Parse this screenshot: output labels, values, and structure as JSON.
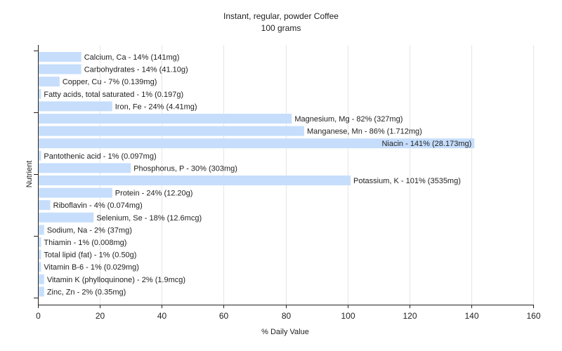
{
  "chart_data": {
    "type": "bar",
    "orientation": "horizontal",
    "title": "Instant, regular, powder Coffee",
    "subtitle": "100 grams",
    "xlabel": "% Daily Value",
    "ylabel": "Nutrient",
    "xlim": [
      0,
      160
    ],
    "xticks": [
      0,
      20,
      40,
      60,
      80,
      100,
      120,
      140,
      160
    ],
    "grid": true,
    "bar_color": "#c6defc",
    "categories": [
      "Calcium, Ca",
      "Carbohydrates",
      "Copper, Cu",
      "Fatty acids, total saturated",
      "Iron, Fe",
      "Magnesium, Mg",
      "Manganese, Mn",
      "Niacin",
      "Pantothenic acid",
      "Phosphorus, P",
      "Potassium, K",
      "Protein",
      "Riboflavin",
      "Selenium, Se",
      "Sodium, Na",
      "Thiamin",
      "Total lipid (fat)",
      "Vitamin B-6",
      "Vitamin K (phylloquinone)",
      "Zinc, Zn"
    ],
    "values": [
      14,
      14,
      7,
      1,
      24,
      82,
      86,
      141,
      1,
      30,
      101,
      24,
      4,
      18,
      2,
      1,
      1,
      1,
      2,
      2
    ],
    "labels": [
      "Calcium, Ca - 14% (141mg)",
      "Carbohydrates - 14% (41.10g)",
      "Copper, Cu - 7% (0.139mg)",
      "Fatty acids, total saturated - 1% (0.197g)",
      "Iron, Fe - 24% (4.41mg)",
      "Magnesium, Mg - 82% (327mg)",
      "Manganese, Mn - 86% (1.712mg)",
      "Niacin - 141% (28.173mg)",
      "Pantothenic acid - 1% (0.097mg)",
      "Phosphorus, P - 30% (303mg)",
      "Potassium, K - 101% (3535mg)",
      "Protein - 24% (12.20g)",
      "Riboflavin - 4% (0.074mg)",
      "Selenium, Se - 18% (12.6mcg)",
      "Sodium, Na - 2% (37mg)",
      "Thiamin - 1% (0.008mg)",
      "Total lipid (fat) - 1% (0.50g)",
      "Vitamin B-6 - 1% (0.029mg)",
      "Vitamin K (phylloquinone) - 2% (1.9mcg)",
      "Zinc, Zn - 2% (0.35mg)"
    ]
  }
}
